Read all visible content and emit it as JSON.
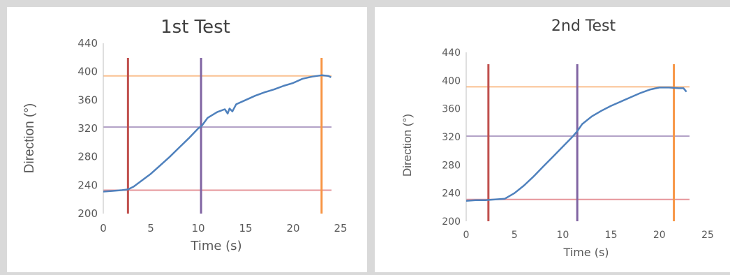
{
  "chart_data": [
    {
      "type": "line",
      "title": "1st Test",
      "xlabel": "Time (s)",
      "ylabel": "Direction (°)",
      "xlim": [
        0,
        25
      ],
      "ylim": [
        200,
        440
      ],
      "x_ticks": [
        "0",
        "5",
        "10",
        "15",
        "20",
        "25"
      ],
      "y_ticks": [
        "200",
        "240",
        "280",
        "320",
        "360",
        "400",
        "440"
      ],
      "grid": false,
      "series": [
        {
          "color": "#4f81bd",
          "x": [
            0,
            1,
            2,
            2.6,
            3.2,
            4,
            5,
            6,
            7,
            8,
            9,
            10,
            10.4,
            11,
            12,
            12.8,
            13.1,
            13.3,
            13.6,
            14,
            15,
            16,
            17,
            18,
            19,
            20,
            21,
            22,
            23,
            23.7,
            24
          ],
          "y": [
            231,
            232,
            233,
            234,
            238,
            246,
            256,
            268,
            280,
            293,
            306,
            320,
            324,
            335,
            343,
            347,
            341,
            348,
            344,
            354,
            360,
            366,
            371,
            375,
            380,
            384,
            390,
            393,
            395,
            394,
            392
          ]
        }
      ],
      "reference_lines": {
        "vertical": [
          {
            "x": 2.6,
            "color": "#c0504d"
          },
          {
            "x": 10.3,
            "color": "#8064a2"
          },
          {
            "x": 23,
            "color": "#f79646"
          }
        ],
        "horizontal": [
          {
            "y": 233,
            "color": "#e6959a"
          },
          {
            "y": 322,
            "color": "#b3a2c7"
          },
          {
            "y": 394,
            "color": "#fac090"
          }
        ]
      }
    },
    {
      "type": "line",
      "title": "2nd Test",
      "xlabel": "Time (s)",
      "ylabel": "Direction (°)",
      "xlim": [
        0,
        25
      ],
      "ylim": [
        200,
        440
      ],
      "x_ticks": [
        "0",
        "5",
        "10",
        "15",
        "20",
        "25"
      ],
      "y_ticks": [
        "200",
        "240",
        "280",
        "320",
        "360",
        "400",
        "440"
      ],
      "grid": false,
      "series": [
        {
          "color": "#4f81bd",
          "x": [
            0,
            1,
            2,
            3,
            4,
            5,
            6,
            7,
            8,
            9,
            10,
            11,
            11.5,
            12,
            13,
            14,
            15,
            16,
            17,
            18,
            19,
            20,
            21,
            22,
            22.5,
            22.8
          ],
          "y": [
            229,
            230,
            230,
            231,
            232,
            240,
            251,
            264,
            278,
            292,
            306,
            320,
            328,
            338,
            349,
            357,
            364,
            370,
            376,
            382,
            387,
            390,
            390,
            389,
            389,
            384
          ]
        }
      ],
      "reference_lines": {
        "vertical": [
          {
            "x": 2.3,
            "color": "#c0504d"
          },
          {
            "x": 11.5,
            "color": "#8064a2"
          },
          {
            "x": 21.5,
            "color": "#f79646"
          }
        ],
        "horizontal": [
          {
            "y": 231,
            "color": "#e6959a"
          },
          {
            "y": 321,
            "color": "#b3a2c7"
          },
          {
            "y": 391,
            "color": "#fac090"
          }
        ]
      }
    }
  ]
}
